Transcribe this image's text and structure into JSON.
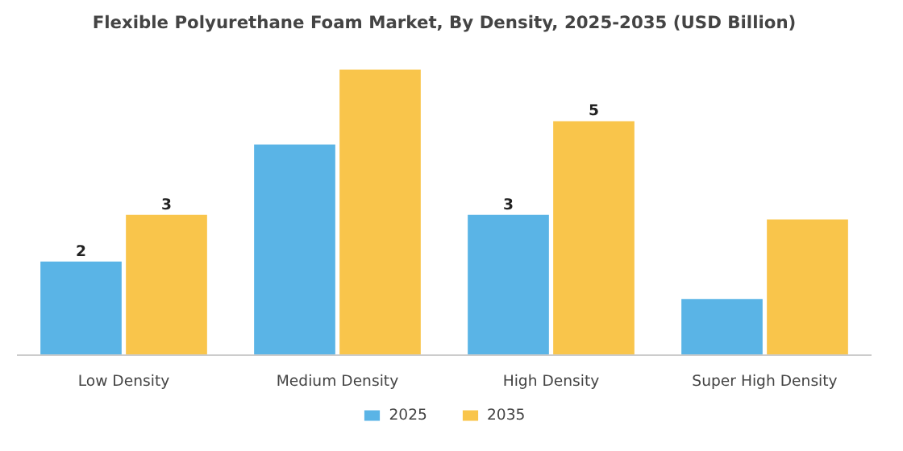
{
  "chart_data": {
    "type": "bar",
    "title": "Flexible Polyurethane Foam Market, By Density, 2025-2035 (USD Billion)",
    "categories": [
      "Low Density",
      "Medium Density",
      "High Density",
      "Super High Density"
    ],
    "tick_labels": "x",
    "legend": "bottom",
    "series": [
      {
        "name": "2025",
        "color": "#5ab4e6",
        "values": [
          2,
          4.5,
          3,
          1.2
        ],
        "value_labels": [
          "2",
          null,
          "3",
          null
        ]
      },
      {
        "name": "2035",
        "color": "#f9c54b",
        "values": [
          3,
          6.1,
          5,
          2.9
        ],
        "value_labels": [
          "3",
          null,
          "5",
          null
        ]
      }
    ]
  }
}
